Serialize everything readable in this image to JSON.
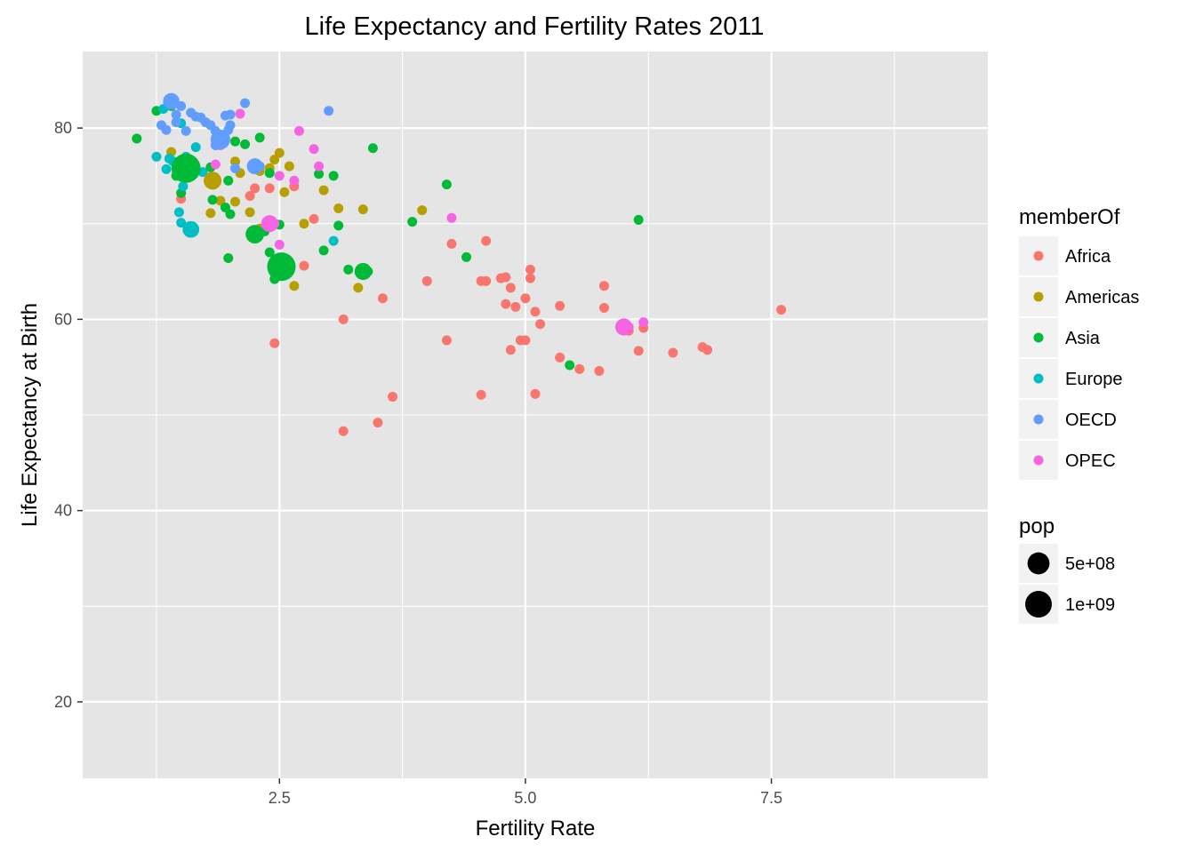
{
  "chart_data": {
    "type": "scatter",
    "title": "Life Expectancy and Fertility Rates 2011",
    "xlabel": "Fertility Rate",
    "ylabel": "Life Expectancy at Birth",
    "xlim": [
      0.5,
      9.7
    ],
    "ylim": [
      12,
      88
    ],
    "xticks": [
      {
        "value": 2.5,
        "label": "2.5"
      },
      {
        "value": 5.0,
        "label": "5.0"
      },
      {
        "value": 7.5,
        "label": "7.5"
      }
    ],
    "yticks": [
      {
        "value": 20,
        "label": "20"
      },
      {
        "value": 40,
        "label": "40"
      },
      {
        "value": 60,
        "label": "60"
      },
      {
        "value": 80,
        "label": "80"
      }
    ],
    "grid": true,
    "background": "#e5e5e5",
    "legend_position": "right",
    "color_legend": {
      "title": "memberOf",
      "entries": [
        {
          "name": "Africa",
          "color": "#F8766D"
        },
        {
          "name": "Americas",
          "color": "#B79F00"
        },
        {
          "name": "Asia",
          "color": "#00BA38"
        },
        {
          "name": "Europe",
          "color": "#00BFC4"
        },
        {
          "name": "OECD",
          "color": "#619CFF"
        },
        {
          "name": "OPEC",
          "color": "#F564E3"
        }
      ]
    },
    "size_legend": {
      "title": "pop",
      "entries": [
        {
          "label": "5e+08",
          "pop": 500000000
        },
        {
          "label": "1e+09",
          "pop": 1000000000
        }
      ]
    },
    "series": [
      {
        "name": "Africa",
        "color": "#F8766D",
        "points": [
          [
            1.5,
            72.6
          ],
          [
            2.2,
            72.9
          ],
          [
            2.25,
            73.7
          ],
          [
            2.3,
            76
          ],
          [
            2.4,
            73.7
          ],
          [
            2.65,
            73.9
          ],
          [
            2.75,
            65.6
          ],
          [
            2.85,
            70.5
          ],
          [
            2.45,
            57.5
          ],
          [
            3.15,
            48.3
          ],
          [
            3.15,
            60
          ],
          [
            3.5,
            49.2
          ],
          [
            3.55,
            62.2
          ],
          [
            3.65,
            51.9
          ],
          [
            4.0,
            64
          ],
          [
            4.2,
            57.8
          ],
          [
            4.25,
            67.9
          ],
          [
            4.55,
            52.1
          ],
          [
            4.55,
            64
          ],
          [
            4.6,
            64
          ],
          [
            4.6,
            68.2
          ],
          [
            4.75,
            64.3
          ],
          [
            4.8,
            64.4
          ],
          [
            4.8,
            61.6
          ],
          [
            4.85,
            63.3
          ],
          [
            4.85,
            56.8
          ],
          [
            4.9,
            61.3
          ],
          [
            4.95,
            57.8
          ],
          [
            5.0,
            57.8
          ],
          [
            5.0,
            62.2
          ],
          [
            5.05,
            64.3
          ],
          [
            5.05,
            65.2
          ],
          [
            5.1,
            60.8
          ],
          [
            5.1,
            52.2
          ],
          [
            5.15,
            59.5
          ],
          [
            5.35,
            61.4
          ],
          [
            5.35,
            56
          ],
          [
            5.55,
            54.8
          ],
          [
            5.75,
            54.6
          ],
          [
            5.8,
            63.5
          ],
          [
            5.8,
            61.2
          ],
          [
            6.05,
            58.8
          ],
          [
            6.15,
            56.7
          ],
          [
            6.2,
            59.1
          ],
          [
            6.5,
            56.5
          ],
          [
            6.8,
            57.1
          ],
          [
            6.85,
            56.8
          ],
          [
            7.6,
            61
          ]
        ]
      },
      {
        "name": "Americas",
        "color": "#B79F00",
        "points": [
          [
            1.4,
            77.5
          ],
          [
            1.55,
            75.3
          ],
          [
            1.8,
            71.1
          ],
          [
            1.82,
            74.5
          ],
          [
            1.9,
            72.4
          ],
          [
            2.05,
            72.3
          ],
          [
            2.1,
            75.3
          ],
          [
            2.2,
            71.2
          ],
          [
            2.25,
            76.3
          ],
          [
            2.3,
            69.5
          ],
          [
            2.3,
            75.5
          ],
          [
            2.4,
            75.8
          ],
          [
            2.45,
            76.7
          ],
          [
            2.5,
            77.4
          ],
          [
            2.55,
            73.3
          ],
          [
            2.6,
            76
          ],
          [
            2.65,
            63.5
          ],
          [
            2.75,
            70
          ],
          [
            2.95,
            73.5
          ],
          [
            3.1,
            71.6
          ],
          [
            3.3,
            63.3
          ],
          [
            3.35,
            71.5
          ],
          [
            3.95,
            71.4
          ],
          [
            2.05,
            76.5
          ]
        ]
      },
      {
        "name": "Asia",
        "color": "#00BA38",
        "points": [
          [
            1.05,
            78.9
          ],
          [
            1.25,
            81.8
          ],
          [
            1.4,
            82.3
          ],
          [
            1.45,
            75
          ],
          [
            1.5,
            73.2
          ],
          [
            1.6,
            75.9
          ],
          [
            1.8,
            75.9
          ],
          [
            1.82,
            72.5
          ],
          [
            1.95,
            71.7
          ],
          [
            1.98,
            74.5
          ],
          [
            1.98,
            66.4
          ],
          [
            2.0,
            71
          ],
          [
            2.05,
            78.6
          ],
          [
            2.15,
            78.3
          ],
          [
            2.25,
            68.9
          ],
          [
            2.3,
            79
          ],
          [
            2.35,
            69.2
          ],
          [
            2.4,
            67
          ],
          [
            2.45,
            64.2
          ],
          [
            2.5,
            69.9
          ],
          [
            2.55,
            65.4
          ],
          [
            2.9,
            75.2
          ],
          [
            2.95,
            67.2
          ],
          [
            3.05,
            75
          ],
          [
            3.1,
            69.8
          ],
          [
            3.2,
            65.2
          ],
          [
            3.4,
            65
          ],
          [
            3.45,
            77.9
          ],
          [
            3.85,
            70.2
          ],
          [
            4.2,
            74.1
          ],
          [
            4.4,
            66.5
          ],
          [
            5.45,
            55.2
          ],
          [
            6.15,
            70.4
          ],
          [
            2.4,
            75.3
          ]
        ]
      },
      {
        "name": "Europe",
        "color": "#00BFC4",
        "points": [
          [
            1.25,
            77
          ],
          [
            1.35,
            75.7
          ],
          [
            1.38,
            76.8
          ],
          [
            1.42,
            76.5
          ],
          [
            1.48,
            71.2
          ],
          [
            1.5,
            70.1
          ],
          [
            1.52,
            73.9
          ],
          [
            1.55,
            77
          ],
          [
            1.6,
            69.4
          ],
          [
            1.65,
            78
          ],
          [
            1.72,
            75.4
          ],
          [
            3.05,
            68.2
          ],
          [
            1.32,
            82
          ],
          [
            1.5,
            80.5
          ]
        ]
      },
      {
        "name": "OECD",
        "color": "#619CFF",
        "points": [
          [
            1.3,
            80.3
          ],
          [
            1.35,
            79.8
          ],
          [
            1.4,
            82.8
          ],
          [
            1.45,
            80.6
          ],
          [
            1.5,
            82.3
          ],
          [
            1.55,
            79.7
          ],
          [
            1.6,
            81.6
          ],
          [
            1.65,
            81.2
          ],
          [
            1.75,
            80.6
          ],
          [
            1.8,
            80.3
          ],
          [
            1.85,
            79.7
          ],
          [
            1.9,
            79
          ],
          [
            1.95,
            81.3
          ],
          [
            2.0,
            80.3
          ],
          [
            2.0,
            81.4
          ],
          [
            2.05,
            75.8
          ],
          [
            2.15,
            82.6
          ],
          [
            2.3,
            76
          ],
          [
            3.0,
            81.8
          ],
          [
            1.85,
            78.2
          ],
          [
            1.98,
            79.8
          ],
          [
            1.7,
            81.1
          ],
          [
            1.45,
            81.4
          ]
        ]
      },
      {
        "name": "OPEC",
        "color": "#F564E3",
        "points": [
          [
            1.85,
            76.2
          ],
          [
            1.9,
            78.2
          ],
          [
            2.1,
            81.5
          ],
          [
            2.45,
            70
          ],
          [
            2.5,
            67.8
          ],
          [
            2.5,
            75
          ],
          [
            2.65,
            74.5
          ],
          [
            2.7,
            79.7
          ],
          [
            2.85,
            77.8
          ],
          [
            2.9,
            76
          ],
          [
            4.25,
            70.6
          ],
          [
            6.05,
            59.2
          ],
          [
            6.2,
            59.7
          ]
        ]
      }
    ]
  }
}
